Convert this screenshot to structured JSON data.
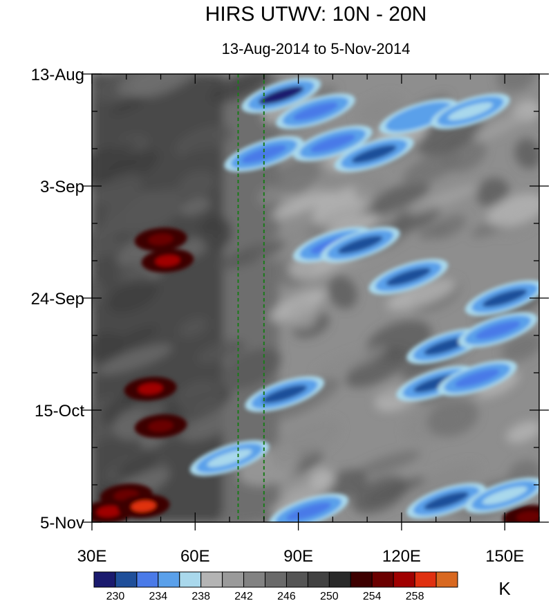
{
  "chart_data": {
    "type": "heatmap",
    "title": "HIRS UTWV: 10N - 20N",
    "subtitle": "13-Aug-2014 to 5-Nov-2014",
    "x_ticks": [
      {
        "value": 30,
        "label": "30E"
      },
      {
        "value": 60,
        "label": "60E"
      },
      {
        "value": 90,
        "label": "90E"
      },
      {
        "value": 120,
        "label": "120E"
      },
      {
        "value": 150,
        "label": "150E"
      }
    ],
    "xlim": [
      30,
      160
    ],
    "y_ticks": [
      {
        "value": "2014-08-13",
        "label": "13-Aug"
      },
      {
        "value": "2014-09-03",
        "label": "3-Sep"
      },
      {
        "value": "2014-09-24",
        "label": "24-Sep"
      },
      {
        "value": "2014-10-15",
        "label": "15-Oct"
      },
      {
        "value": "2014-11-05",
        "label": "5-Nov"
      }
    ],
    "ylim": [
      "2014-08-13",
      "2014-11-05"
    ],
    "reference_lines_lon": [
      72.5,
      80
    ],
    "colorbar": {
      "unit": "K",
      "tick_labels": [
        {
          "value": 230,
          "label": "230"
        },
        {
          "value": 234,
          "label": "234"
        },
        {
          "value": 238,
          "label": "238"
        },
        {
          "value": 242,
          "label": "242"
        },
        {
          "value": 246,
          "label": "246"
        },
        {
          "value": 250,
          "label": "250"
        },
        {
          "value": 254,
          "label": "254"
        },
        {
          "value": 258,
          "label": "258"
        }
      ],
      "colors": [
        "#1a1a6e",
        "#1f4f9a",
        "#4a7ae8",
        "#5aa0ea",
        "#a9d8ec",
        "#b4b4b4",
        "#9a9a9a",
        "#828282",
        "#6a6a6a",
        "#555555",
        "#414141",
        "#2a2a2a",
        "#3d0000",
        "#6b0000",
        "#a00000",
        "#e03010",
        "#d86820"
      ]
    },
    "features": [
      {
        "lon": 85,
        "date": "2014-08-17",
        "value": 229
      },
      {
        "lon": 95,
        "date": "2014-08-20",
        "value": 233
      },
      {
        "lon": 80,
        "date": "2014-08-28",
        "value": 232
      },
      {
        "lon": 100,
        "date": "2014-08-26",
        "value": 233
      },
      {
        "lon": 112,
        "date": "2014-08-28",
        "value": 230
      },
      {
        "lon": 125,
        "date": "2014-08-21",
        "value": 235
      },
      {
        "lon": 140,
        "date": "2014-08-20",
        "value": 236
      },
      {
        "lon": 100,
        "date": "2014-09-14",
        "value": 233
      },
      {
        "lon": 108,
        "date": "2014-09-14",
        "value": 231
      },
      {
        "lon": 122,
        "date": "2014-09-20",
        "value": 231
      },
      {
        "lon": 150,
        "date": "2014-09-24",
        "value": 230
      },
      {
        "lon": 133,
        "date": "2014-10-03",
        "value": 230
      },
      {
        "lon": 148,
        "date": "2014-09-30",
        "value": 232
      },
      {
        "lon": 130,
        "date": "2014-10-10",
        "value": 230
      },
      {
        "lon": 142,
        "date": "2014-10-09",
        "value": 233
      },
      {
        "lon": 86,
        "date": "2014-10-12",
        "value": 230
      },
      {
        "lon": 70,
        "date": "2014-10-24",
        "value": 236
      },
      {
        "lon": 93,
        "date": "2014-11-03",
        "value": 233
      },
      {
        "lon": 133,
        "date": "2014-11-01",
        "value": 231
      },
      {
        "lon": 150,
        "date": "2014-10-31",
        "value": 236
      },
      {
        "lon": 50,
        "date": "2014-09-13",
        "value": 255
      },
      {
        "lon": 52,
        "date": "2014-09-17",
        "value": 256
      },
      {
        "lon": 47,
        "date": "2014-10-11",
        "value": 256
      },
      {
        "lon": 50,
        "date": "2014-10-18",
        "value": 254
      },
      {
        "lon": 40,
        "date": "2014-10-31",
        "value": 255
      },
      {
        "lon": 35,
        "date": "2014-11-03",
        "value": 257
      },
      {
        "lon": 45,
        "date": "2014-11-02",
        "value": 258
      },
      {
        "lon": 157,
        "date": "2014-11-04",
        "value": 254
      }
    ]
  }
}
